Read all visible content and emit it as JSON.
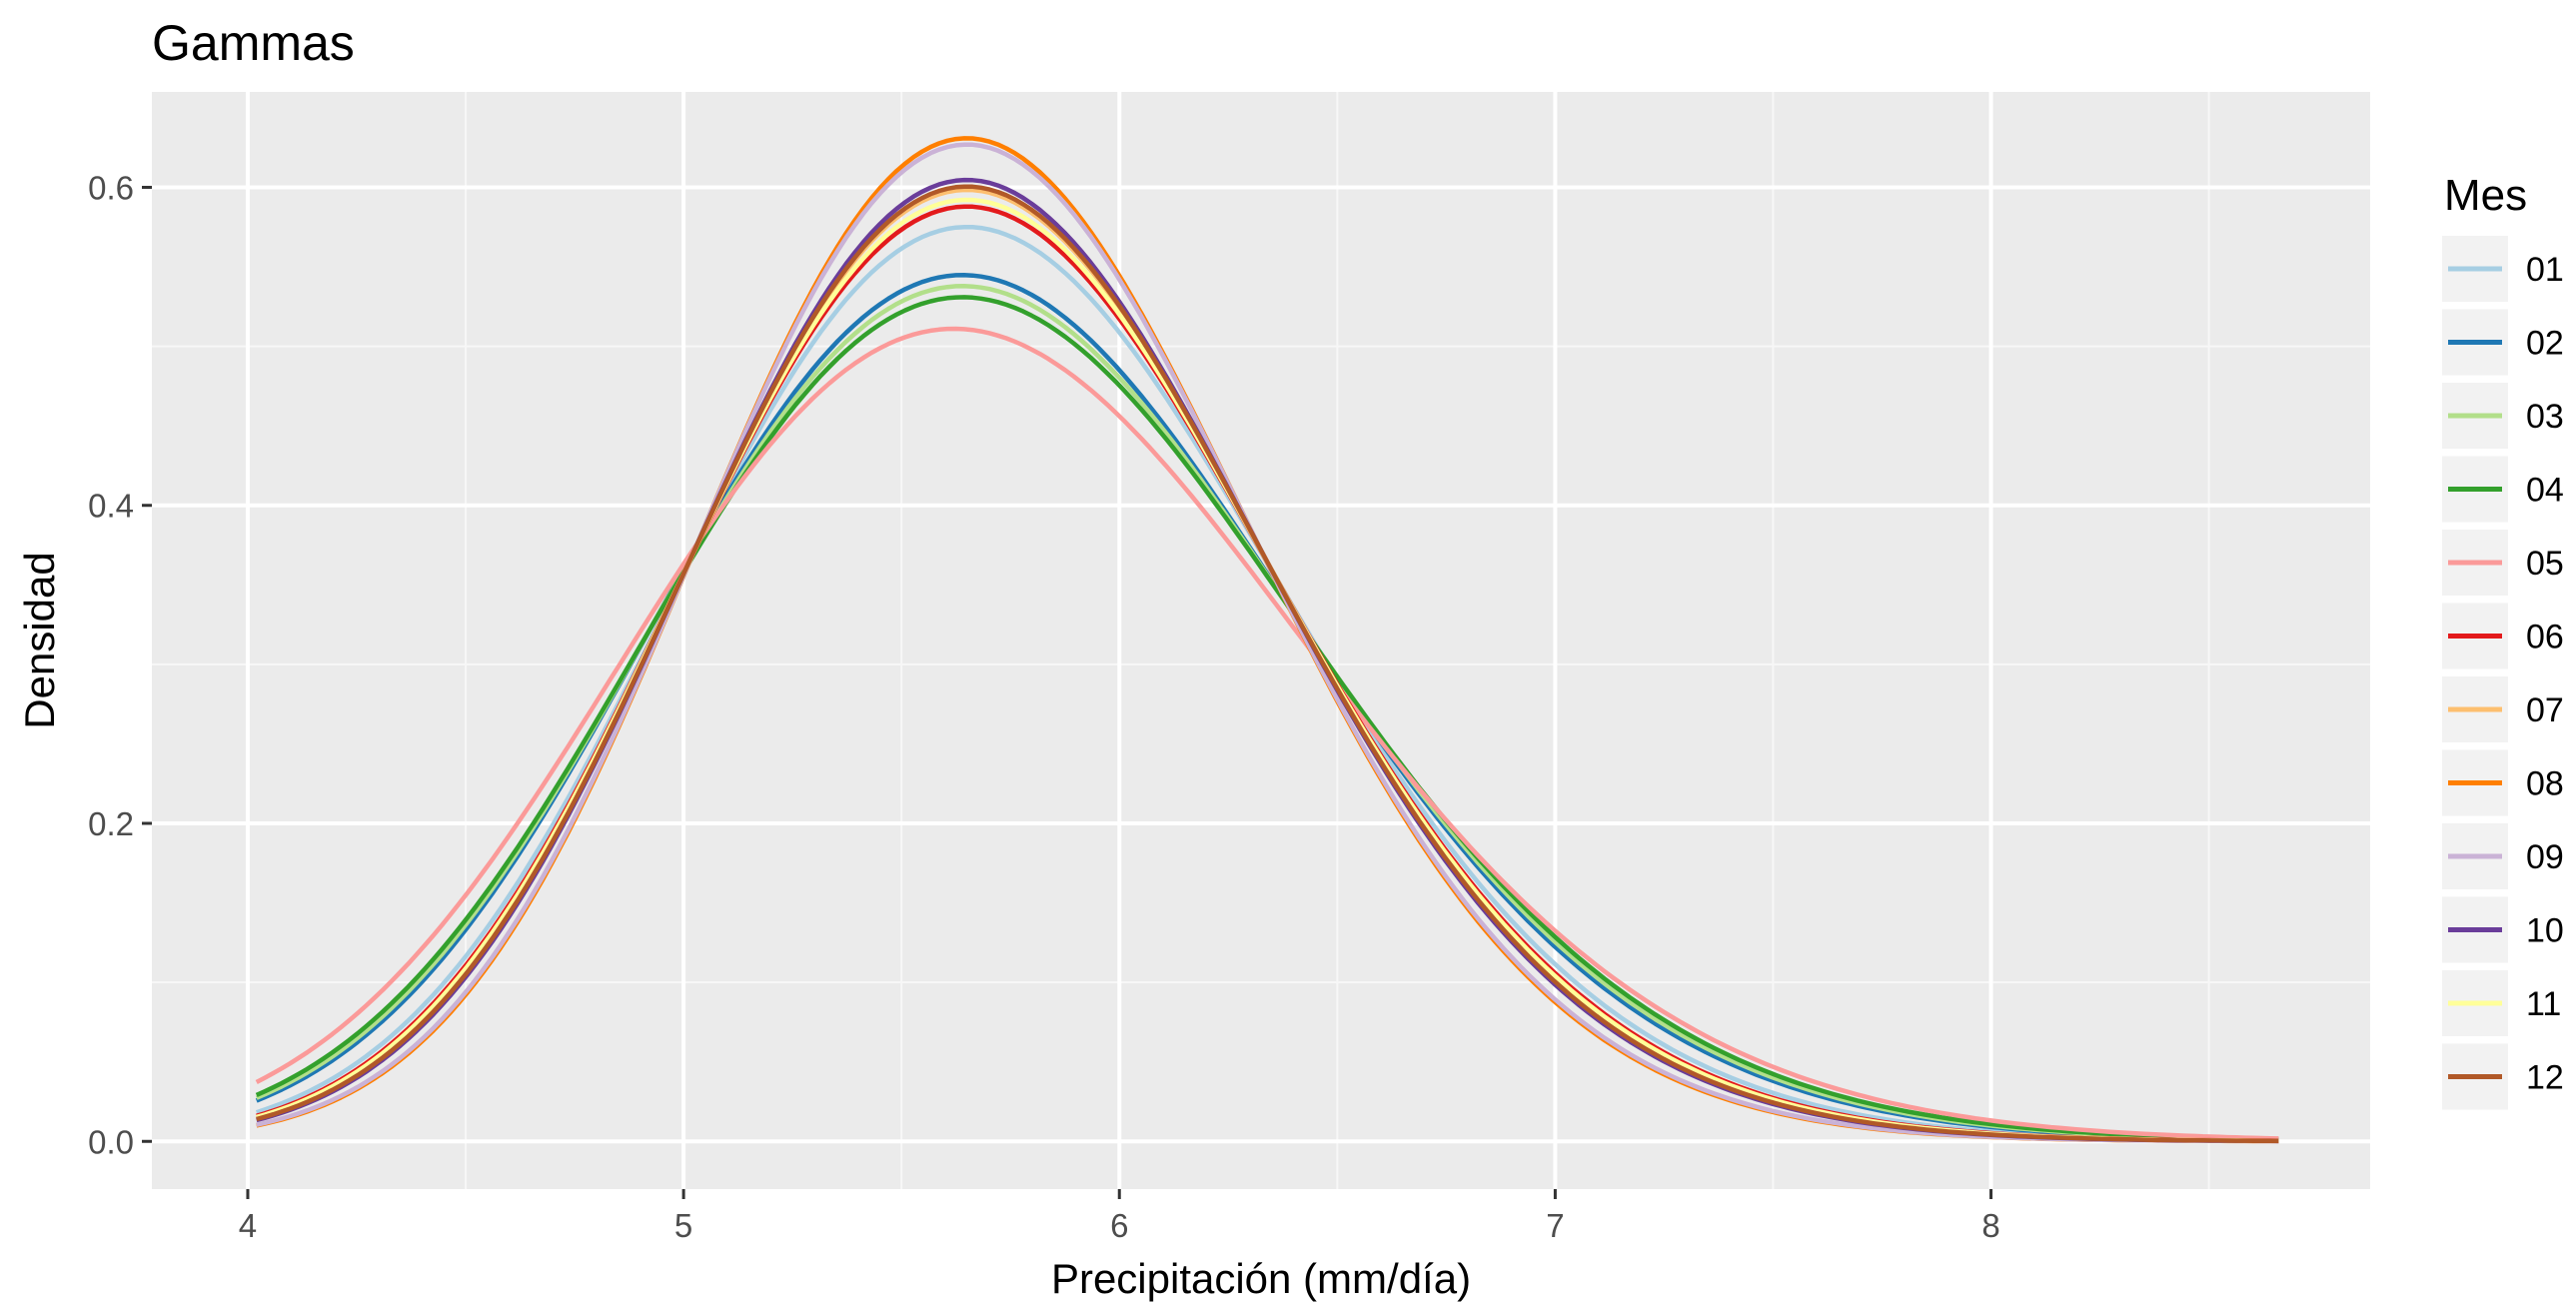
{
  "chart_data": {
    "type": "line",
    "title": "Gammas",
    "xlabel": "Precipitación (mm/día)",
    "ylabel": "Densidad",
    "xlim": [
      3.78,
      8.87
    ],
    "ylim": [
      -0.03,
      0.66
    ],
    "x_ticks": [
      "4",
      "5",
      "6",
      "7",
      "8"
    ],
    "y_ticks": [
      "0.0",
      "0.2",
      "0.4",
      "0.6"
    ],
    "x_tick_values": [
      4,
      5,
      6,
      7,
      8
    ],
    "y_tick_values": [
      0.0,
      0.2,
      0.4,
      0.6
    ],
    "grid": true,
    "legend_title": "Mes",
    "legend_position": "right",
    "x_range": [
      4.02,
      8.66
    ],
    "series": [
      {
        "name": "01",
        "color": "#A6CEE3",
        "mode": 5.65,
        "peak": 0.575,
        "start": 0.021
      },
      {
        "name": "02",
        "color": "#1F78B4",
        "mode": 5.64,
        "peak": 0.545,
        "start": 0.027
      },
      {
        "name": "03",
        "color": "#B2DF8A",
        "mode": 5.64,
        "peak": 0.539,
        "start": 0.029
      },
      {
        "name": "04",
        "color": "#33A02C",
        "mode": 5.64,
        "peak": 0.532,
        "start": 0.031
      },
      {
        "name": "05",
        "color": "#FB9A99",
        "mode": 5.62,
        "peak": 0.512,
        "start": 0.037
      },
      {
        "name": "06",
        "color": "#E31A1C",
        "mode": 5.65,
        "peak": 0.587,
        "start": 0.017
      },
      {
        "name": "07",
        "color": "#FDBF6F",
        "mode": 5.65,
        "peak": 0.598,
        "start": 0.016
      },
      {
        "name": "08",
        "color": "#FF7F00",
        "mode": 5.65,
        "peak": 0.631,
        "start": 0.01
      },
      {
        "name": "09",
        "color": "#CAB2D6",
        "mode": 5.65,
        "peak": 0.626,
        "start": 0.011
      },
      {
        "name": "10",
        "color": "#6A3D9A",
        "mode": 5.65,
        "peak": 0.604,
        "start": 0.014
      },
      {
        "name": "11",
        "color": "#FFFF99",
        "mode": 5.65,
        "peak": 0.593,
        "start": 0.016
      },
      {
        "name": "12",
        "color": "#B15928",
        "mode": 5.65,
        "peak": 0.6,
        "start": 0.015
      }
    ]
  }
}
